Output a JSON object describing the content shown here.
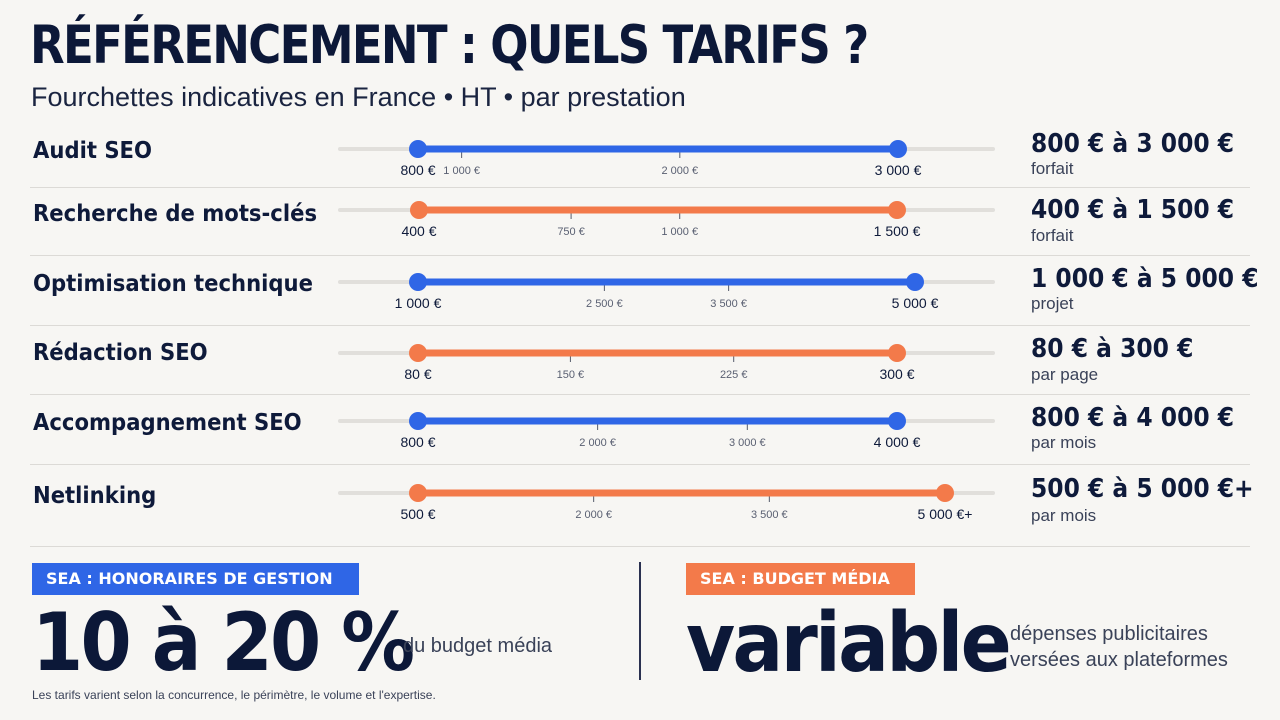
{
  "header": {
    "title": "RÉFÉRENCEMENT : QUELS TARIFS ?",
    "subtitle": "Fourchettes indicatives en France • HT • par prestation"
  },
  "colors": {
    "blue": "#2f66e6",
    "orange": "#f37a4a",
    "track": "#e1dfdb",
    "navy": "#0c1838"
  },
  "chart_data": {
    "type": "range",
    "rows": [
      {
        "label": "Audit SEO",
        "color": "blue",
        "min": 800,
        "max": 3000,
        "min_label": "800 €",
        "max_label": "3 000 €",
        "ticks": [
          {
            "value": 1000,
            "label": "1 000 €"
          },
          {
            "value": 2000,
            "label": "2 000 €"
          }
        ],
        "range_text": "800 € à 3 000 €",
        "unit_text": "forfait"
      },
      {
        "label": "Recherche de mots-clés",
        "color": "orange",
        "min": 400,
        "max": 1500,
        "min_label": "400 €",
        "max_label": "1 500 €",
        "ticks": [
          {
            "value": 750,
            "label": "750 €"
          },
          {
            "value": 1000,
            "label": "1 000 €"
          }
        ],
        "range_text": "400 € à 1 500 €",
        "unit_text": "forfait"
      },
      {
        "label": "Optimisation technique",
        "color": "blue",
        "min": 1000,
        "max": 5000,
        "min_label": "1 000 €",
        "max_label": "5 000 €",
        "ticks": [
          {
            "value": 2500,
            "label": "2 500 €"
          },
          {
            "value": 3500,
            "label": "3 500 €"
          }
        ],
        "range_text": "1 000 € à 5 000 €",
        "unit_text": "projet"
      },
      {
        "label": "Rédaction SEO",
        "color": "orange",
        "min": 80,
        "max": 300,
        "min_label": "80 €",
        "max_label": "300 €",
        "ticks": [
          {
            "value": 150,
            "label": "150 €"
          },
          {
            "value": 225,
            "label": "225 €"
          }
        ],
        "range_text": "80 € à 300 €",
        "unit_text": "par page"
      },
      {
        "label": "Accompagnement SEO",
        "color": "blue",
        "min": 800,
        "max": 4000,
        "min_label": "800 €",
        "max_label": "4 000 €",
        "ticks": [
          {
            "value": 2000,
            "label": "2 000 €"
          },
          {
            "value": 3000,
            "label": "3 000 €"
          }
        ],
        "range_text": "800 € à 4 000 €",
        "unit_text": "par mois"
      },
      {
        "label": "Netlinking",
        "color": "orange",
        "min": 500,
        "max": 5000,
        "min_label": "500 €",
        "max_label": "5 000 €+",
        "ticks": [
          {
            "value": 2000,
            "label": "2 000 €"
          },
          {
            "value": 3500,
            "label": "3 500 €"
          }
        ],
        "range_text": "500 € à 5 000 €+",
        "unit_text": "par mois"
      }
    ]
  },
  "sea_fees": {
    "badge": "SEA : HONORAIRES DE GESTION",
    "value": "10 à 20 %",
    "caption": "du budget média"
  },
  "sea_budget": {
    "badge": "SEA  : BUDGET MÉDIA",
    "value": "variable",
    "caption_line1": "dépenses publicitaires",
    "caption_line2": "versées aux plateformes"
  },
  "footnote": "Les tarifs varient selon la concurrence, le périmètre, le volume et l'expertise."
}
